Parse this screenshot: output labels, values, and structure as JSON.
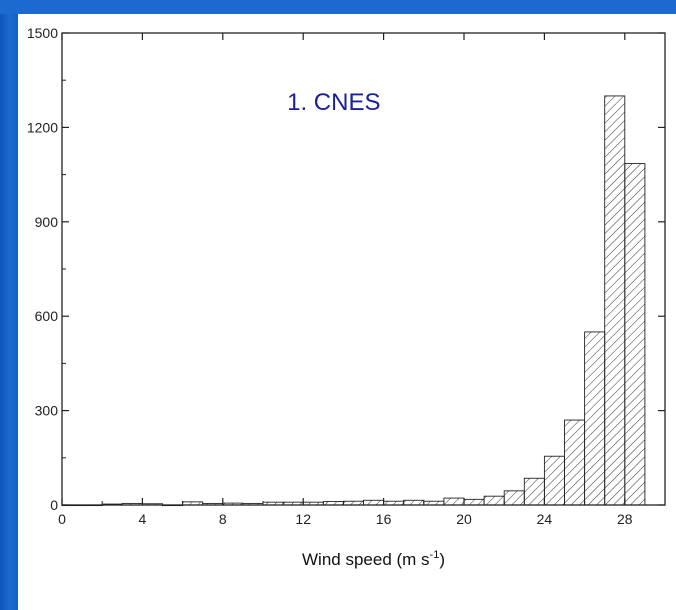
{
  "colors": {
    "background": "#1a64c0",
    "annotation": "#1a1f9e",
    "bar_stroke": "#222222"
  },
  "chart_data": {
    "type": "bar",
    "title": "",
    "annotation": "1. CNES",
    "xlabel": "Wind speed (m s",
    "xlabel_sup": "-1",
    "xlabel_close": ")",
    "ylabel": "",
    "xlim": [
      0,
      30
    ],
    "ylim": [
      0,
      1500
    ],
    "xticks": [
      "0",
      "4",
      "8",
      "12",
      "16",
      "20",
      "24",
      "28"
    ],
    "yticks": [
      "0",
      "300",
      "600",
      "900",
      "1200",
      "1500"
    ],
    "bin_width": 1,
    "bin_starts": [
      0,
      1,
      2,
      3,
      4,
      5,
      6,
      7,
      8,
      9,
      10,
      11,
      12,
      13,
      14,
      15,
      16,
      17,
      18,
      19,
      20,
      21,
      22,
      23,
      24,
      25,
      26,
      27,
      28
    ],
    "values": [
      0,
      0,
      3,
      5,
      4,
      0,
      10,
      5,
      6,
      5,
      9,
      9,
      9,
      11,
      12,
      15,
      12,
      15,
      12,
      22,
      18,
      28,
      45,
      85,
      155,
      270,
      550,
      1300,
      1085
    ],
    "fill_pattern": "diagonal-hatch",
    "grid": false,
    "legend": "none"
  }
}
